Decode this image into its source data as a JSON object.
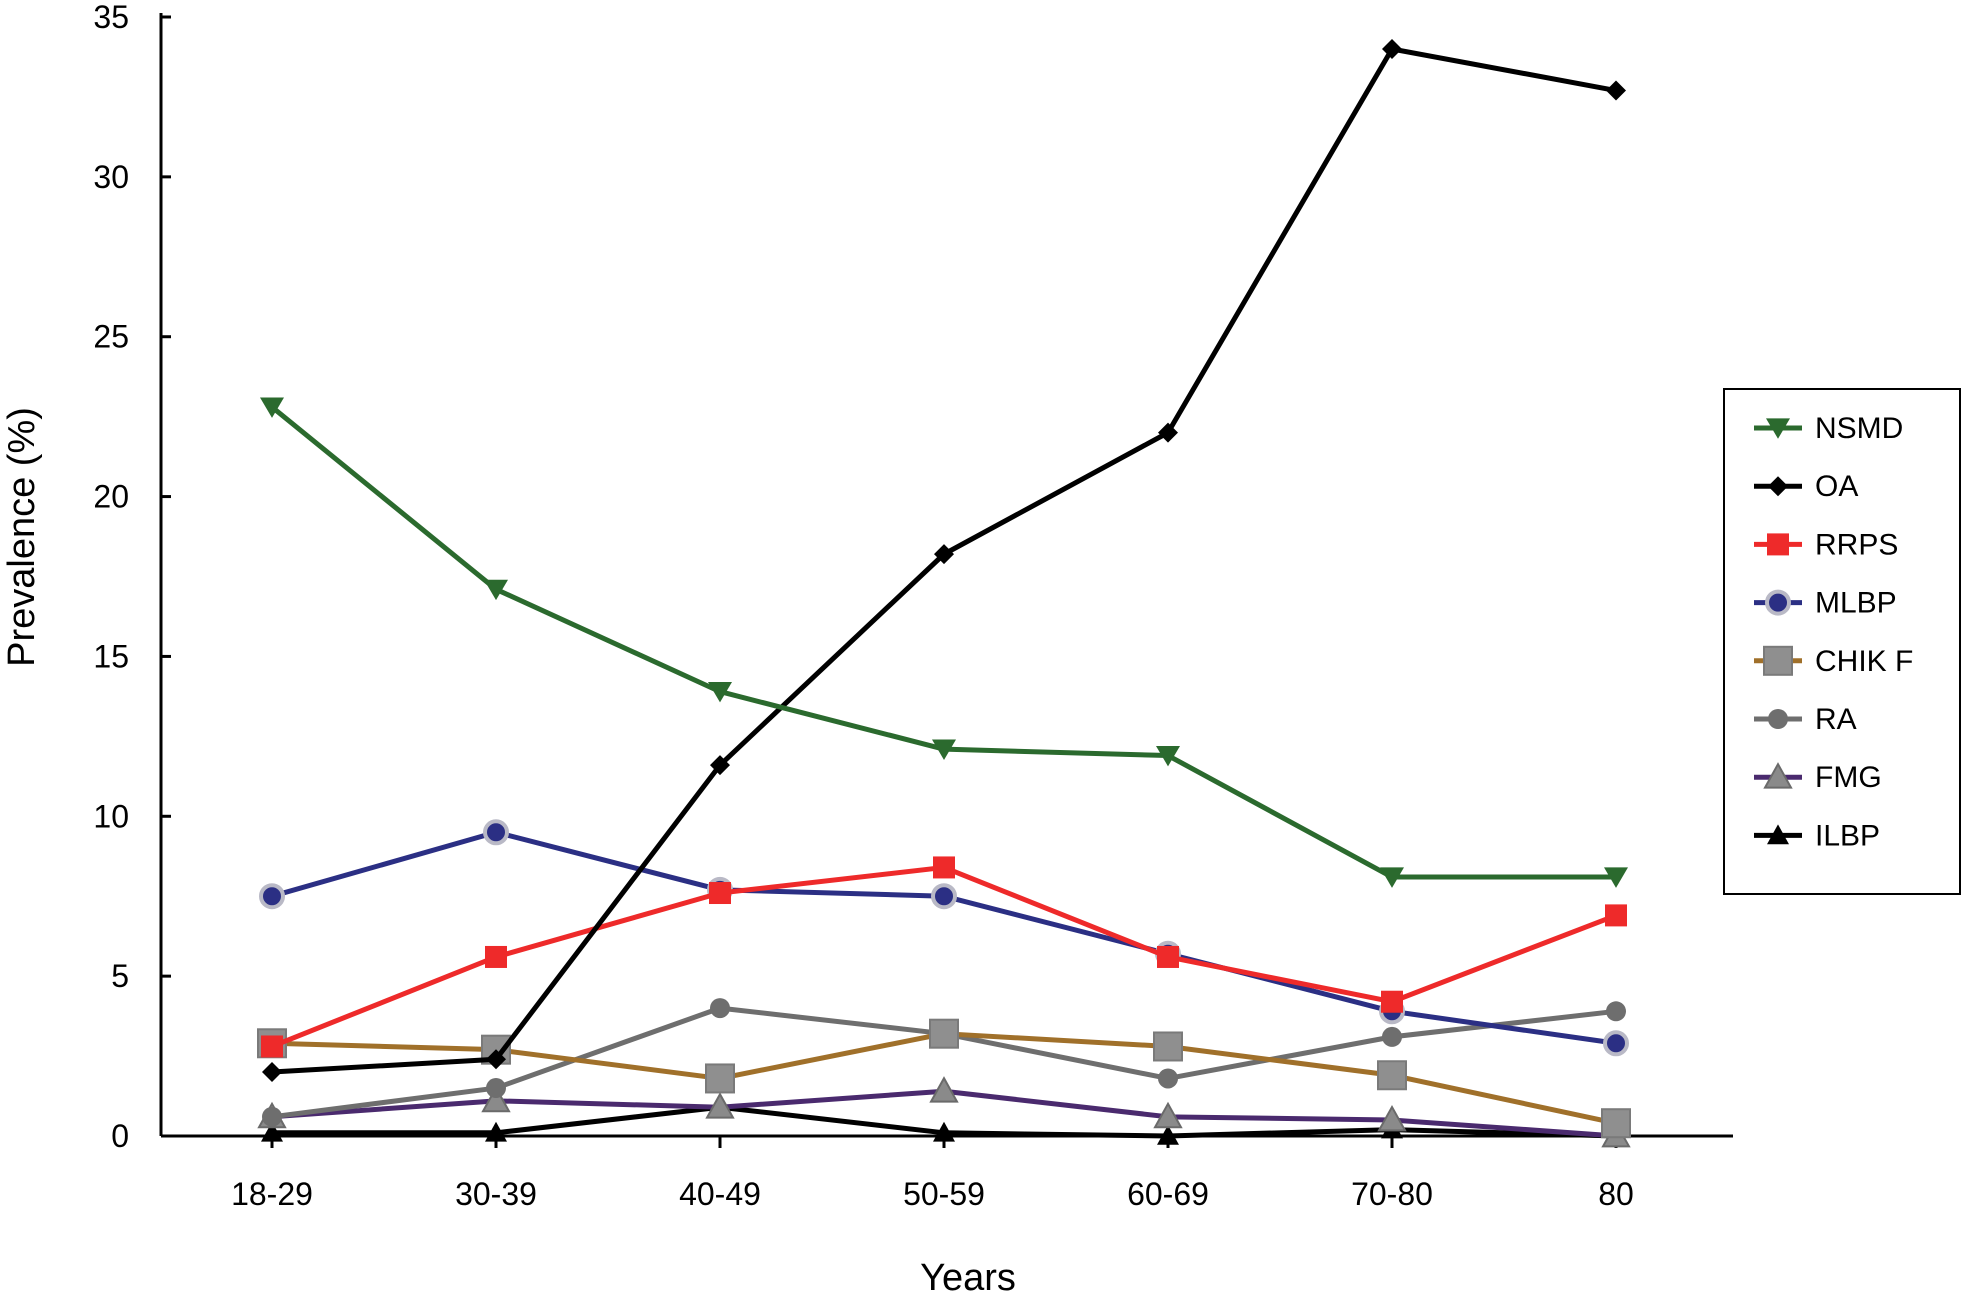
{
  "chart_data": {
    "type": "line",
    "title": "",
    "xlabel": "Years",
    "ylabel": "Prevalence (%)",
    "categories": [
      "18-29",
      "30-39",
      "40-49",
      "50-59",
      "60-69",
      "70-80",
      "80"
    ],
    "ylim": [
      0,
      35
    ],
    "yticks": [
      0,
      5,
      10,
      15,
      20,
      25,
      30,
      35
    ],
    "grid": false,
    "legend_position": "right",
    "series": [
      {
        "name": "NSMD",
        "color": "#2b6a2e",
        "marker": "triangle-down",
        "values": [
          22.8,
          17.1,
          13.9,
          12.1,
          11.9,
          8.1,
          8.1
        ]
      },
      {
        "name": "OA",
        "color": "#000000",
        "marker": "diamond",
        "values": [
          2.0,
          2.4,
          11.6,
          18.2,
          22.0,
          34.0,
          32.7
        ]
      },
      {
        "name": "RRPS",
        "color": "#ee2a2a",
        "marker": "square",
        "values": [
          2.8,
          5.6,
          7.6,
          8.4,
          5.6,
          4.2,
          6.9
        ]
      },
      {
        "name": "MLBP",
        "color": "#2b2f84",
        "marker": "circle-ringed",
        "values": [
          7.5,
          9.5,
          7.7,
          7.5,
          5.7,
          3.9,
          2.9
        ]
      },
      {
        "name": "CHIK F",
        "color": "#a0702a",
        "marker": "square-gray",
        "values": [
          2.9,
          2.7,
          1.8,
          3.2,
          2.8,
          1.9,
          0.4
        ]
      },
      {
        "name": "RA",
        "color": "#6e6e6e",
        "marker": "circle",
        "values": [
          0.6,
          1.5,
          4.0,
          3.2,
          1.8,
          3.1,
          3.9
        ]
      },
      {
        "name": "FMG",
        "color": "#4a2a6e",
        "marker": "triangle-up-gray",
        "values": [
          0.6,
          1.1,
          0.9,
          1.4,
          0.6,
          0.5,
          0.0
        ]
      },
      {
        "name": "ILBP",
        "color": "#000000",
        "marker": "triangle-up",
        "values": [
          0.1,
          0.1,
          0.9,
          0.1,
          0.0,
          0.2,
          0.0
        ]
      }
    ]
  }
}
